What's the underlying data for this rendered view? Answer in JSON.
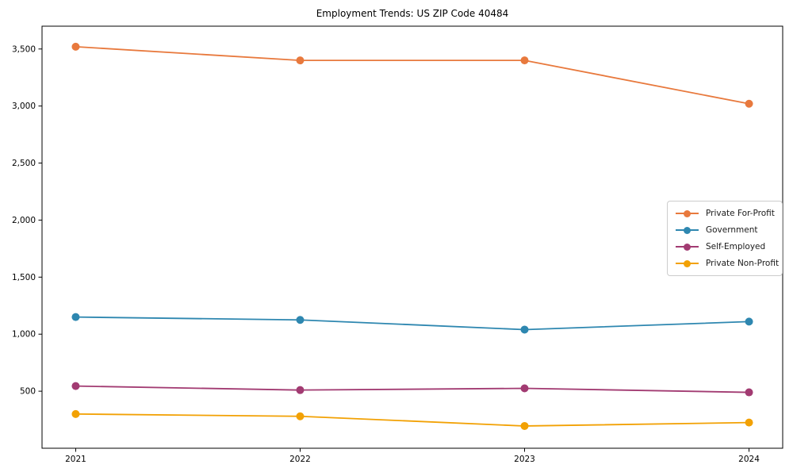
{
  "chart_data": {
    "type": "line",
    "title": "Employment Trends: US ZIP Code 40484",
    "x": [
      2021,
      2022,
      2023,
      2024
    ],
    "x_labels": [
      "2021",
      "2022",
      "2023",
      "2024"
    ],
    "series": [
      {
        "name": "Private For-Profit",
        "color": "#e8793d",
        "values": [
          3520,
          3400,
          3400,
          3020
        ]
      },
      {
        "name": "Government",
        "color": "#2e87b0",
        "values": [
          1150,
          1125,
          1040,
          1110
        ]
      },
      {
        "name": "Self-Employed",
        "color": "#a23b72",
        "values": [
          545,
          510,
          525,
          490
        ]
      },
      {
        "name": "Private Non-Profit",
        "color": "#f2a104",
        "values": [
          300,
          280,
          195,
          225
        ]
      }
    ],
    "yticks": [
      {
        "value": 500,
        "label": "500"
      },
      {
        "value": 1000,
        "label": "1,000"
      },
      {
        "value": 1500,
        "label": "1,500"
      },
      {
        "value": 2000,
        "label": "2,000"
      },
      {
        "value": 2500,
        "label": "2,500"
      },
      {
        "value": 3000,
        "label": "3,000"
      },
      {
        "value": 3500,
        "label": "3,500"
      }
    ],
    "ylim": [
      0,
      3700
    ],
    "xlim": [
      2020.85,
      2024.15
    ],
    "xlabel": "",
    "ylabel": "",
    "grid": false,
    "legend_position": "center right",
    "marker": "circle",
    "axis_color": "#000000",
    "background": "#ffffff"
  }
}
